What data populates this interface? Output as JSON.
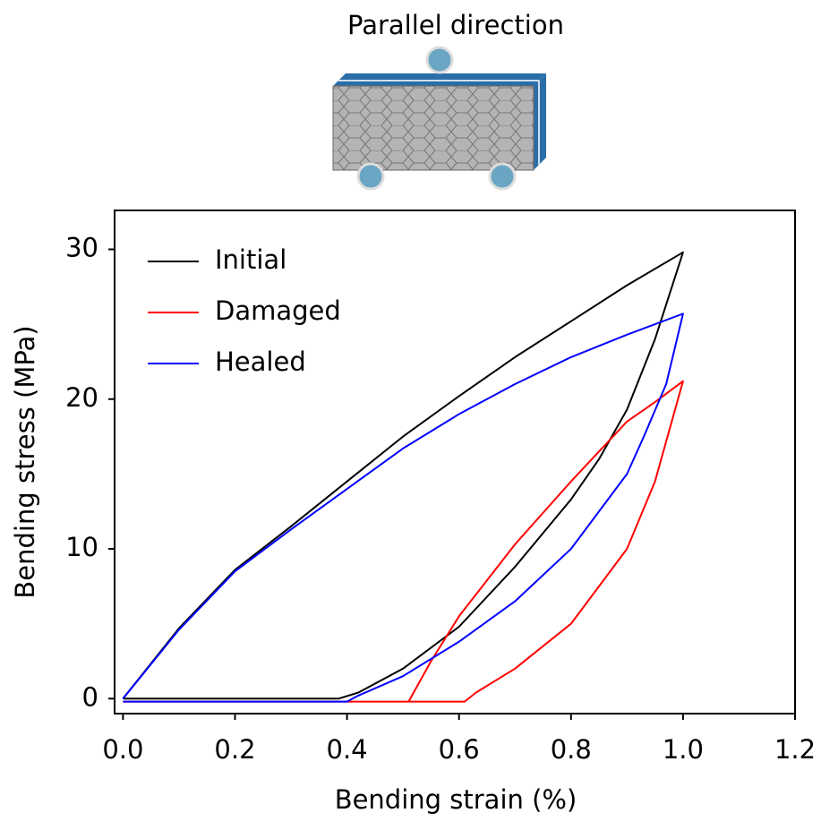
{
  "chart_data": {
    "type": "line",
    "title": "Parallel direction",
    "x_label": "Bending strain (%)",
    "y_label": "Bending stress (MPa)",
    "xlim": [
      -0.015,
      1.2
    ],
    "ylim": [
      -1,
      32.6
    ],
    "xticks": [
      {
        "value": 0,
        "label": "0.0"
      },
      0.2,
      0.4,
      0.6,
      0.8,
      {
        "value": 1,
        "label": "1.0"
      },
      1.2
    ],
    "yticks": [
      0,
      10,
      20,
      30
    ],
    "legend": "upper left",
    "series": [
      {
        "name": "Initial",
        "color": "#000000",
        "x": [
          0,
          0.1,
          0.2,
          0.3,
          0.4,
          0.5,
          0.6,
          0.7,
          0.8,
          0.9,
          1.0,
          0.95,
          0.9,
          0.85,
          0.8,
          0.7,
          0.6,
          0.5,
          0.42,
          0.385,
          0.2,
          0
        ],
        "values": [
          0,
          4.7,
          8.6,
          11.5,
          14.5,
          17.5,
          20.2,
          22.8,
          25.2,
          27.6,
          29.8,
          24,
          19.3,
          16,
          13.3,
          8.8,
          4.8,
          2.0,
          0.4,
          0,
          0,
          0
        ]
      },
      {
        "name": "Damaged",
        "color": "#ff0000",
        "x": [
          0,
          0.3,
          0.51,
          0.55,
          0.6,
          0.7,
          0.8,
          0.9,
          0.95,
          1.0,
          0.95,
          0.9,
          0.8,
          0.7,
          0.63,
          0.61,
          0.51
        ],
        "values": [
          -0.2,
          -0.2,
          -0.2,
          2.5,
          5.5,
          10.3,
          14.5,
          18.5,
          19.8,
          21.2,
          14.5,
          10,
          5,
          2,
          0.4,
          -0.2,
          -0.2
        ]
      },
      {
        "name": "Healed",
        "color": "#0000ff",
        "x": [
          0,
          0.1,
          0.2,
          0.3,
          0.4,
          0.5,
          0.6,
          0.7,
          0.8,
          0.9,
          1.0,
          0.97,
          0.93,
          0.9,
          0.8,
          0.7,
          0.6,
          0.5,
          0.42,
          0.4,
          0.2,
          0
        ],
        "values": [
          0,
          4.6,
          8.5,
          11.3,
          14,
          16.7,
          19,
          21,
          22.8,
          24.3,
          25.7,
          21,
          17.5,
          15,
          10,
          6.5,
          3.8,
          1.5,
          0.2,
          -0.2,
          -0.2,
          -0.2
        ]
      }
    ]
  }
}
